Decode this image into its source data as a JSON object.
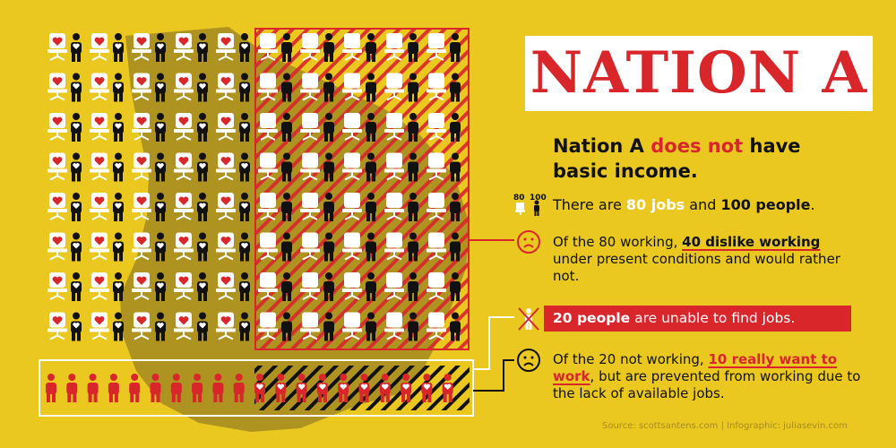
{
  "title": "NATION A",
  "headline": {
    "line1_pre": "Nation A ",
    "line1_red": "does not",
    "line1_post": " have",
    "line2": "basic income."
  },
  "facts": {
    "jobs_people": {
      "icon_label_jobs": "80",
      "icon_label_people": "100",
      "pre": "There are ",
      "jobs": "80 jobs",
      "mid": " and ",
      "people": "100 people",
      "post": "."
    },
    "dislike": {
      "pre": "Of the 80 working, ",
      "highlight": "40 dislike working",
      "post": " under present conditions and would rather not."
    },
    "unable": {
      "highlight": "20 people",
      "post": " are unable to find jobs."
    },
    "want_work": {
      "pre": "Of the 20 not working, ",
      "highlight": "10 really want to work",
      "post": ", but are prevented from working due to the lack of available jobs."
    }
  },
  "source": "Source: scottsantens.com | Infographic: juliasevin.com",
  "colors": {
    "background": "#eac820",
    "accent_red": "#d8262b",
    "map_brown": "#a58a22",
    "black": "#111111",
    "white": "#ffffff"
  },
  "icons": [
    "person-icon",
    "office-chair-icon",
    "heart-icon",
    "frown-face-icon",
    "crossed-person-icon"
  ],
  "counts": {
    "jobs": 80,
    "people": 100,
    "like_working": 40,
    "dislike_working": 40,
    "unemployed": 20,
    "want_to_work": 10
  }
}
